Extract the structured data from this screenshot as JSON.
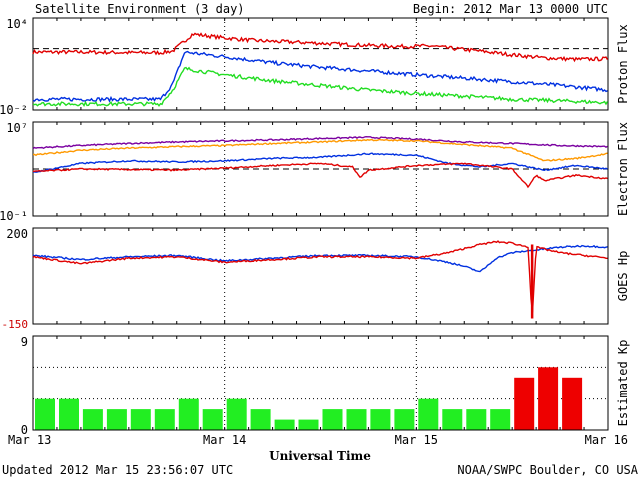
{
  "header": {
    "title": "Satellite Environment (3 day)",
    "begin": "Begin:  2012 Mar 13 0000 UTC"
  },
  "footer": {
    "updated": "Updated 2012 Mar 15 23:56:07 UTC",
    "credit": "NOAA/SWPC Boulder, CO USA"
  },
  "chart_data": [
    {
      "type": "line",
      "ylabel": "Proton Flux",
      "yscale": "log",
      "ylim": [
        0.01,
        10000
      ],
      "tick_labels": [
        "10⁴",
        "10⁻²"
      ],
      "grid": "dotted vertical at day boundaries",
      "reference_line": 100,
      "xlim": [
        0,
        72
      ],
      "series": [
        {
          "color": "#e00000",
          "x": [
            0,
            6,
            12,
            16,
            17.5,
            20,
            24,
            28,
            34,
            40,
            46,
            50,
            52,
            56,
            60,
            64,
            68,
            72
          ],
          "values": [
            60,
            60,
            55,
            55,
            70,
            900,
            500,
            330,
            250,
            180,
            140,
            150,
            110,
            70,
            40,
            25,
            20,
            22
          ]
        },
        {
          "color": "#0030e0",
          "x": [
            0,
            6,
            12,
            16,
            17.5,
            19,
            24,
            30,
            36,
            42,
            48,
            54,
            60,
            66,
            72
          ],
          "values": [
            0.05,
            0.05,
            0.05,
            0.05,
            0.5,
            60,
            30,
            12,
            6,
            3.5,
            2,
            1.2,
            0.7,
            0.4,
            0.2
          ]
        },
        {
          "color": "#22dd22",
          "x": [
            0,
            6,
            12,
            16,
            17.5,
            19,
            24,
            30,
            36,
            42,
            48,
            54,
            60,
            66,
            72
          ],
          "values": [
            0.025,
            0.025,
            0.025,
            0.025,
            0.2,
            5,
            2,
            0.8,
            0.4,
            0.2,
            0.12,
            0.08,
            0.05,
            0.04,
            0.03
          ]
        }
      ]
    },
    {
      "type": "line",
      "ylabel": "Electron Flux",
      "yscale": "log",
      "ylim": [
        0.1,
        10000000
      ],
      "tick_labels": [
        "10⁷",
        "10⁻¹"
      ],
      "reference_line": 1000,
      "xlim": [
        0,
        72
      ],
      "series": [
        {
          "color": "#7a00a0",
          "x": [
            0,
            6,
            12,
            18,
            24,
            30,
            36,
            42,
            48,
            54,
            60,
            66,
            72
          ],
          "values": [
            60000,
            100000,
            150000,
            200000,
            250000,
            300000,
            400000,
            500000,
            350000,
            200000,
            150000,
            100000,
            80000
          ]
        },
        {
          "color": "#ff9900",
          "x": [
            0,
            6,
            12,
            18,
            24,
            30,
            36,
            42,
            48,
            54,
            60,
            64,
            68,
            72
          ],
          "values": [
            15000,
            40000,
            60000,
            80000,
            100000,
            150000,
            200000,
            300000,
            250000,
            120000,
            60000,
            5000,
            8000,
            20000
          ]
        },
        {
          "color": "#0030e0",
          "x": [
            0,
            6,
            12,
            18,
            24,
            30,
            36,
            42,
            48,
            52,
            56,
            60,
            64,
            68,
            72
          ],
          "values": [
            500,
            3000,
            5000,
            4000,
            5000,
            8000,
            10000,
            20000,
            15000,
            3000,
            1500,
            3000,
            800,
            2000,
            1000
          ]
        },
        {
          "color": "#e00000",
          "x": [
            0,
            6,
            12,
            18,
            24,
            30,
            36,
            40,
            41,
            42,
            48,
            54,
            60,
            62,
            63,
            64,
            68,
            72
          ],
          "values": [
            600,
            1000,
            900,
            800,
            1200,
            2000,
            3000,
            1500,
            200,
            800,
            2000,
            3000,
            1000,
            30,
            300,
            100,
            300,
            150
          ]
        }
      ]
    },
    {
      "type": "line",
      "ylabel": "GOES Hp",
      "ylim": [
        -150,
        200
      ],
      "tick_labels": [
        "200",
        "-150"
      ],
      "xlim": [
        0,
        72
      ],
      "series": [
        {
          "color": "#0030e0",
          "x": [
            0,
            6,
            12,
            18,
            24,
            30,
            36,
            42,
            48,
            52,
            54,
            56,
            58,
            60,
            63,
            66,
            69,
            72
          ],
          "values": [
            100,
            85,
            95,
            100,
            80,
            90,
            100,
            100,
            95,
            75,
            60,
            40,
            90,
            110,
            120,
            130,
            135,
            130
          ]
        },
        {
          "color": "#e00000",
          "x": [
            0,
            6,
            12,
            18,
            24,
            30,
            36,
            42,
            48,
            52,
            56,
            58,
            60,
            62,
            62.5,
            63,
            66,
            69,
            72
          ],
          "values": [
            95,
            70,
            90,
            95,
            75,
            85,
            95,
            95,
            90,
            110,
            140,
            150,
            145,
            130,
            -130,
            130,
            110,
            100,
            90
          ]
        }
      ]
    },
    {
      "type": "bar",
      "ylabel": "Estimated Kp",
      "ylim": [
        0,
        9
      ],
      "tick_labels": [
        "9",
        "0"
      ],
      "bar_interval_hours": 3,
      "colors": {
        "normal": "#22ee22",
        "storm": "#ee0000"
      },
      "values": [
        3,
        3,
        2,
        2,
        2,
        2,
        3,
        2,
        3,
        2,
        1,
        1,
        2,
        2,
        2,
        2,
        3,
        2,
        2,
        2,
        5,
        6,
        5
      ],
      "storm_flags": [
        false,
        false,
        false,
        false,
        false,
        false,
        false,
        false,
        false,
        false,
        false,
        false,
        false,
        false,
        false,
        false,
        false,
        false,
        false,
        false,
        true,
        true,
        true
      ]
    }
  ],
  "x_axis": {
    "title": "Universal Time",
    "ticks": [
      {
        "hour": 0,
        "label": "Mar 13"
      },
      {
        "hour": 24,
        "label": "Mar 14"
      },
      {
        "hour": 48,
        "label": "Mar 15"
      },
      {
        "hour": 72,
        "label": "Mar 16"
      }
    ]
  }
}
